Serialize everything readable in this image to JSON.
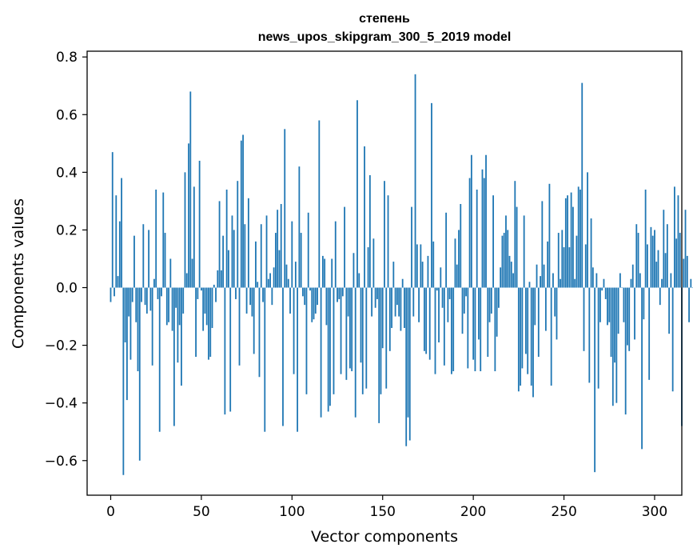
{
  "chart_data": {
    "type": "bar",
    "title": [
      "степень",
      "news_upos_skipgram_300_5_2019 model"
    ],
    "xlabel": "Vector components",
    "ylabel": "Components values",
    "xlim": [
      -13,
      315
    ],
    "ylim": [
      -0.72,
      0.82
    ],
    "xticks": [
      0,
      50,
      100,
      150,
      200,
      250,
      300
    ],
    "yticks": [
      -0.6,
      -0.4,
      -0.2,
      0.0,
      0.2,
      0.4,
      0.6,
      0.8
    ],
    "ytick_labels": [
      "−0.6",
      "−0.4",
      "−0.2",
      "0.0",
      "0.2",
      "0.4",
      "0.6",
      "0.8"
    ],
    "bar_color": "#1f77b4",
    "grid": false,
    "values": [
      -0.05,
      0.47,
      -0.03,
      0.32,
      0.04,
      0.23,
      0.38,
      -0.65,
      -0.19,
      -0.39,
      -0.1,
      -0.25,
      -0.05,
      0.18,
      -0.12,
      -0.29,
      -0.6,
      -0.05,
      0.22,
      -0.06,
      -0.09,
      0.2,
      -0.08,
      -0.27,
      0.03,
      0.34,
      -0.04,
      -0.5,
      -0.03,
      0.33,
      0.19,
      -0.13,
      -0.12,
      0.1,
      -0.15,
      -0.48,
      -0.07,
      -0.26,
      -0.13,
      -0.34,
      -0.09,
      0.4,
      0.05,
      0.5,
      0.68,
      0.1,
      0.35,
      -0.24,
      -0.04,
      0.44,
      -0.01,
      -0.15,
      -0.09,
      -0.13,
      -0.25,
      -0.24,
      -0.14,
      0.01,
      -0.05,
      0.06,
      0.3,
      0.06,
      0.18,
      -0.44,
      0.34,
      0.13,
      -0.43,
      0.25,
      0.2,
      -0.04,
      0.37,
      -0.27,
      0.51,
      0.53,
      0.22,
      -0.09,
      0.31,
      -0.06,
      -0.1,
      -0.23,
      0.16,
      0.02,
      -0.31,
      0.22,
      -0.05,
      -0.5,
      0.25,
      0.03,
      0.05,
      -0.06,
      0.07,
      0.19,
      0.27,
      0.13,
      0.29,
      -0.48,
      0.55,
      0.08,
      0.03,
      -0.09,
      0.23,
      -0.3,
      0.09,
      -0.5,
      0.42,
      0.19,
      -0.03,
      -0.06,
      -0.37,
      0.26,
      -0.01,
      -0.12,
      -0.11,
      -0.09,
      -0.06,
      0.58,
      -0.45,
      0.11,
      0.1,
      -0.13,
      -0.43,
      -0.41,
      0.1,
      -0.37,
      0.23,
      -0.05,
      -0.04,
      -0.3,
      -0.03,
      0.28,
      -0.32,
      -0.1,
      -0.28,
      -0.29,
      0.12,
      -0.45,
      0.65,
      0.05,
      -0.26,
      -0.37,
      0.49,
      -0.35,
      0.14,
      0.39,
      -0.1,
      0.17,
      -0.07,
      -0.04,
      -0.47,
      -0.37,
      -0.21,
      0.37,
      -0.35,
      0.32,
      -0.22,
      -0.14,
      0.09,
      -0.1,
      -0.06,
      -0.1,
      -0.15,
      0.03,
      -0.14,
      -0.55,
      -0.45,
      -0.53,
      0.28,
      -0.1,
      0.74,
      0.15,
      -0.12,
      0.15,
      0.09,
      -0.22,
      -0.23,
      0.11,
      -0.25,
      0.64,
      0.16,
      -0.3,
      -0.01,
      -0.19,
      0.07,
      -0.07,
      -0.27,
      0.26,
      -0.12,
      -0.04,
      -0.3,
      -0.29,
      0.17,
      0.08,
      0.2,
      0.29,
      -0.16,
      -0.09,
      -0.03,
      -0.28,
      0.38,
      0.46,
      -0.25,
      -0.29,
      0.34,
      -0.18,
      -0.29,
      0.41,
      0.38,
      0.46,
      -0.24,
      -0.12,
      -0.09,
      0.32,
      -0.29,
      -0.17,
      -0.07,
      0.07,
      0.18,
      0.19,
      0.25,
      0.2,
      0.11,
      0.09,
      0.05,
      0.37,
      0.28,
      -0.36,
      -0.34,
      -0.28,
      0.25,
      -0.23,
      -0.3,
      0.02,
      -0.34,
      -0.38,
      -0.13,
      0.08,
      -0.24,
      0.04,
      0.3,
      0.08,
      -0.15,
      0.16,
      0.36,
      -0.34,
      0.05,
      -0.1,
      -0.18,
      0.19,
      0.03,
      0.2,
      0.14,
      0.31,
      0.32,
      0.14,
      0.33,
      0.28,
      0.03,
      0.18,
      0.35,
      0.34,
      0.71,
      -0.22,
      0.15,
      0.4,
      -0.33,
      0.24,
      0.07,
      -0.64,
      0.05,
      -0.35,
      -0.12,
      -0.01,
      0.03,
      -0.04,
      -0.13,
      -0.12,
      -0.24,
      -0.41,
      -0.26,
      -0.4,
      -0.16,
      0.05,
      0.0,
      -0.12,
      -0.44,
      -0.2,
      -0.22,
      0.03,
      0.08,
      -0.18,
      0.22,
      0.19,
      0.05,
      -0.56,
      -0.11,
      0.34,
      0.15,
      -0.32,
      0.21,
      0.18,
      0.2,
      0.09,
      0.13,
      -0.06,
      0.03,
      0.27,
      0.12,
      0.22,
      -0.16,
      0.05,
      -0.36,
      0.35,
      0.17,
      0.32,
      0.19,
      -0.48,
      0.1,
      0.27,
      0.11,
      -0.12,
      0.03,
      0.0
    ]
  }
}
